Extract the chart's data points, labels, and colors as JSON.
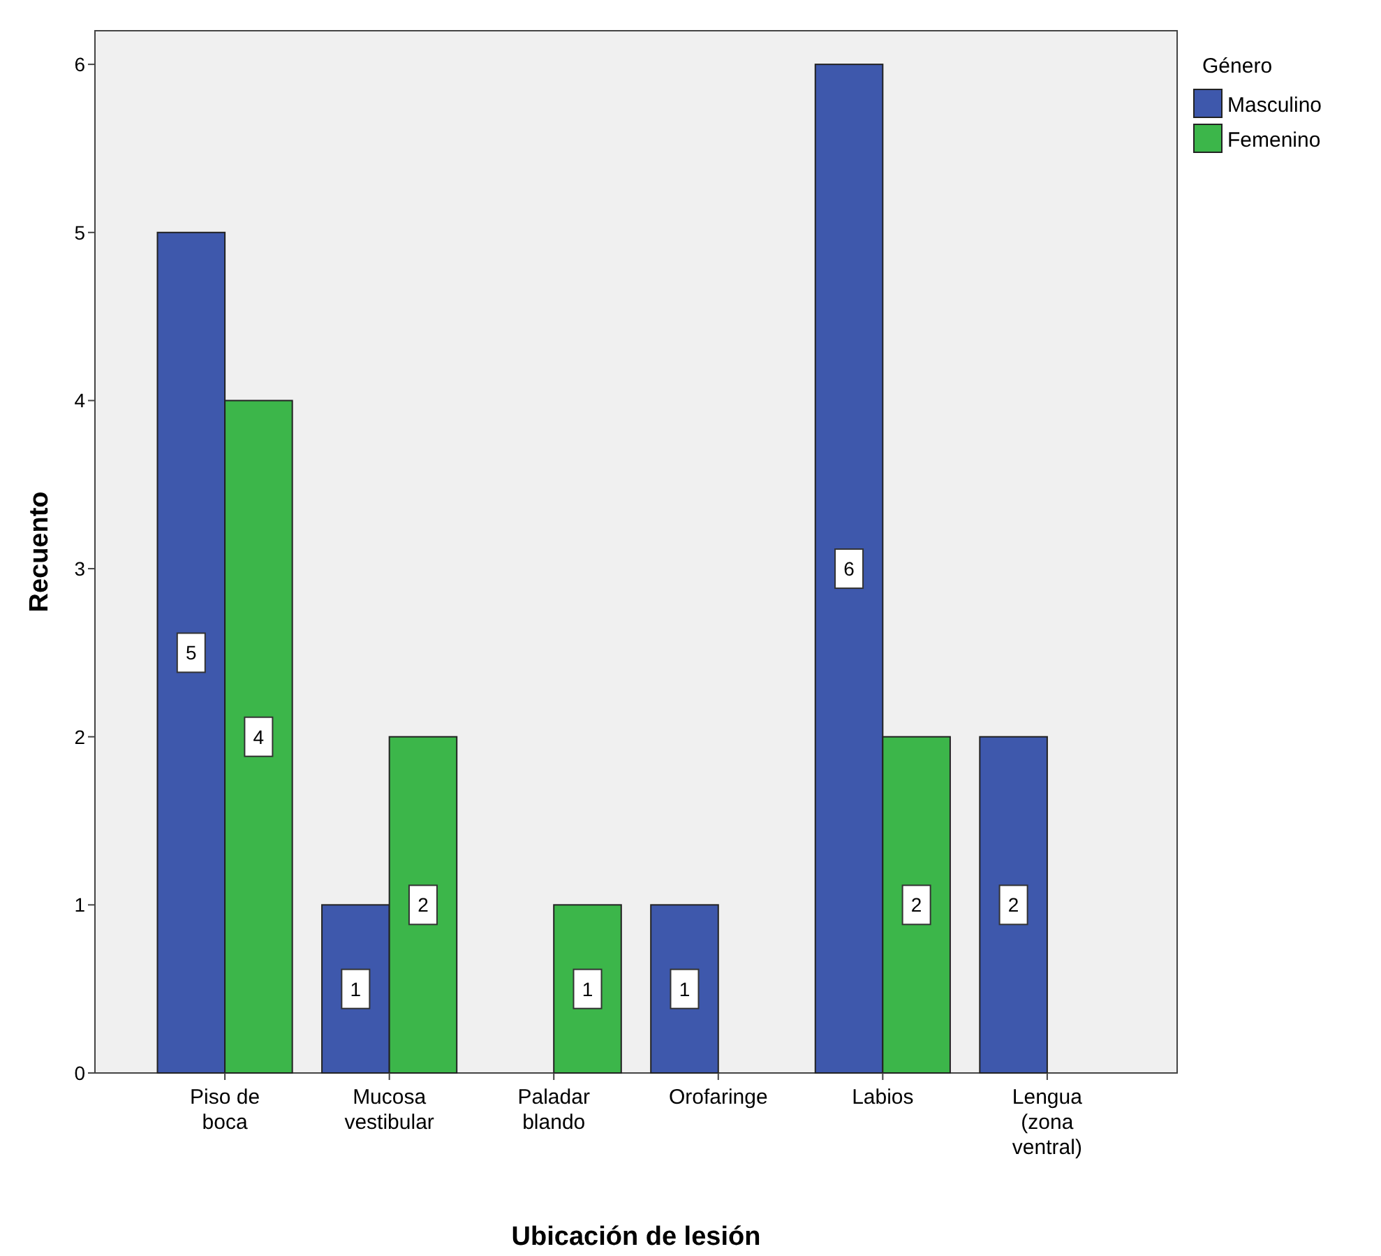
{
  "chart_data": {
    "type": "bar",
    "xlabel": "Ubicación de lesión",
    "ylabel": "Recuento",
    "legend_title": "Género",
    "categories": [
      "Piso de boca",
      "Mucosa vestibular",
      "Paladar blando",
      "Orofaringe",
      "Labios",
      "Lengua (zona ventral)"
    ],
    "series": [
      {
        "name": "Masculino",
        "color": "#3e58ac",
        "values": [
          5,
          1,
          null,
          1,
          6,
          2
        ]
      },
      {
        "name": "Femenino",
        "color": "#3cb64a",
        "values": [
          4,
          2,
          1,
          null,
          2,
          null
        ]
      }
    ],
    "ylim": [
      0,
      6.2
    ],
    "yticks": [
      0,
      1,
      2,
      3,
      4,
      5,
      6
    ],
    "grid": false,
    "legend": "top right",
    "data_labels": true
  }
}
